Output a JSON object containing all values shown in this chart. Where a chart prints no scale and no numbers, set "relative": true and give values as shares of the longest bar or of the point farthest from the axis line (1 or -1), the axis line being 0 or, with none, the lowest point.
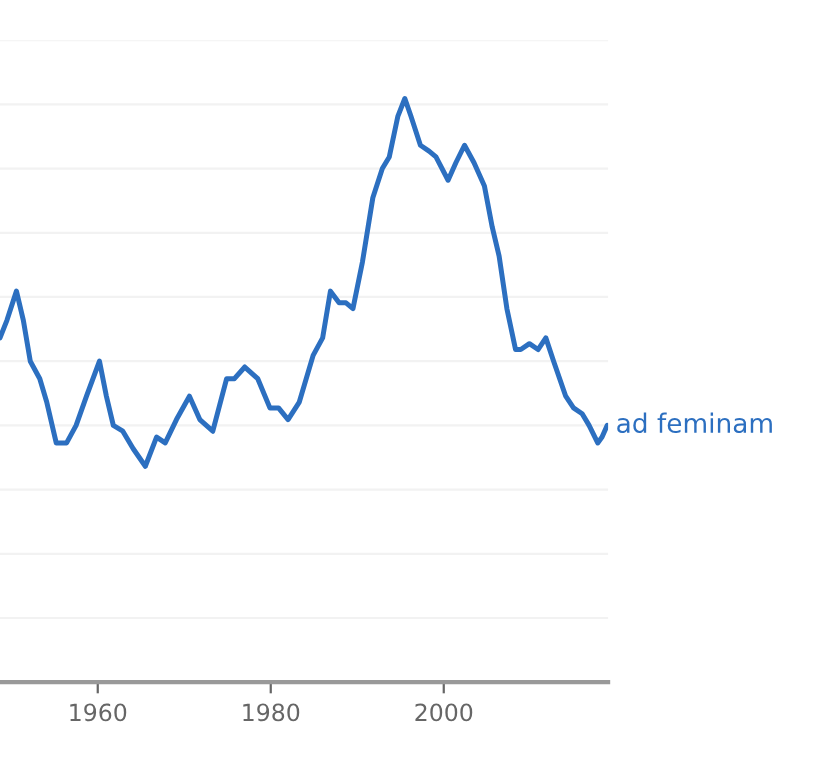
{
  "chart_data": {
    "type": "line",
    "relative": true,
    "grid": "y",
    "legend": false,
    "tick_labels": "x",
    "xlim": [
      1948.7,
      2019
    ],
    "xticks": [
      1960,
      1980,
      2000
    ],
    "series": [
      {
        "name": "ad feminam",
        "color": "#2c6fc0",
        "x": [
          1948.7,
          1949.5,
          1950.6,
          1951.4,
          1952.2,
          1953.3,
          1954.1,
          1955.2,
          1956.4,
          1957.5,
          1958.7,
          1960.2,
          1961.0,
          1961.8,
          1962.9,
          1964.1,
          1965.5,
          1966.8,
          1967.8,
          1969.1,
          1970.6,
          1971.8,
          1973.3,
          1974.9,
          1975.8,
          1977.0,
          1978.5,
          1979.9,
          1980.9,
          1982.0,
          1983.3,
          1984.9,
          1986.0,
          1986.9,
          1987.9,
          1988.7,
          1989.5,
          1990.6,
          1991.8,
          1992.9,
          1993.7,
          1994.7,
          1995.5,
          1996.2,
          1997.3,
          1998.3,
          1999.1,
          2000.5,
          2001.4,
          2002.4,
          2003.5,
          2004.7,
          2005.6,
          2006.4,
          2007.3,
          2008.3,
          2008.9,
          2009.9,
          2010.9,
          2011.8,
          2012.7,
          2014.1,
          2015.0,
          2016.0,
          2016.8,
          2017.8,
          2018.3,
          2018.9
        ],
        "values": [
          0.59,
          0.62,
          0.67,
          0.62,
          0.55,
          0.52,
          0.48,
          0.41,
          0.41,
          0.44,
          0.49,
          0.55,
          0.49,
          0.44,
          0.43,
          0.4,
          0.37,
          0.42,
          0.41,
          0.45,
          0.49,
          0.45,
          0.43,
          0.52,
          0.52,
          0.54,
          0.52,
          0.47,
          0.47,
          0.45,
          0.48,
          0.56,
          0.59,
          0.67,
          0.65,
          0.65,
          0.64,
          0.72,
          0.83,
          0.88,
          0.9,
          0.97,
          1,
          0.97,
          0.92,
          0.91,
          0.9,
          0.86,
          0.89,
          0.92,
          0.89,
          0.85,
          0.78,
          0.73,
          0.64,
          0.57,
          0.57,
          0.58,
          0.57,
          0.59,
          0.55,
          0.49,
          0.47,
          0.46,
          0.44,
          0.41,
          0.42,
          0.44
        ]
      }
    ]
  }
}
